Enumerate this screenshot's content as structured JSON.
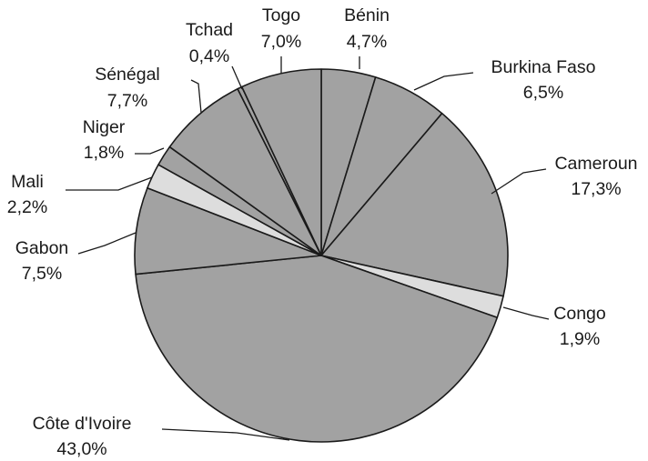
{
  "chart_data": {
    "type": "pie",
    "title": "",
    "slices": [
      {
        "label": "Bénin",
        "value": 4.7,
        "value_label": "4,7%",
        "color": "#a2a2a2"
      },
      {
        "label": "Burkina Faso",
        "value": 6.5,
        "value_label": "6,5%",
        "color": "#a2a2a2"
      },
      {
        "label": "Cameroun",
        "value": 17.3,
        "value_label": "17,3%",
        "color": "#a2a2a2"
      },
      {
        "label": "Congo",
        "value": 1.9,
        "value_label": "1,9%",
        "color": "#dddddd"
      },
      {
        "label": "Côte d'Ivoire",
        "value": 43.0,
        "value_label": "43,0%",
        "color": "#a2a2a2"
      },
      {
        "label": "Gabon",
        "value": 7.5,
        "value_label": "7,5%",
        "color": "#a2a2a2"
      },
      {
        "label": "Mali",
        "value": 2.2,
        "value_label": "2,2%",
        "color": "#dddddd"
      },
      {
        "label": "Niger",
        "value": 1.8,
        "value_label": "1,8%",
        "color": "#a2a2a2"
      },
      {
        "label": "Sénégal",
        "value": 7.7,
        "value_label": "7,7%",
        "color": "#a2a2a2"
      },
      {
        "label": "Tchad",
        "value": 0.4,
        "value_label": "0,4%",
        "color": "#a2a2a2"
      },
      {
        "label": "Togo",
        "value": 7.0,
        "value_label": "7,0%",
        "color": "#a2a2a2"
      }
    ],
    "start_position": "12 o'clock",
    "direction": "clockwise",
    "legend": "none"
  }
}
